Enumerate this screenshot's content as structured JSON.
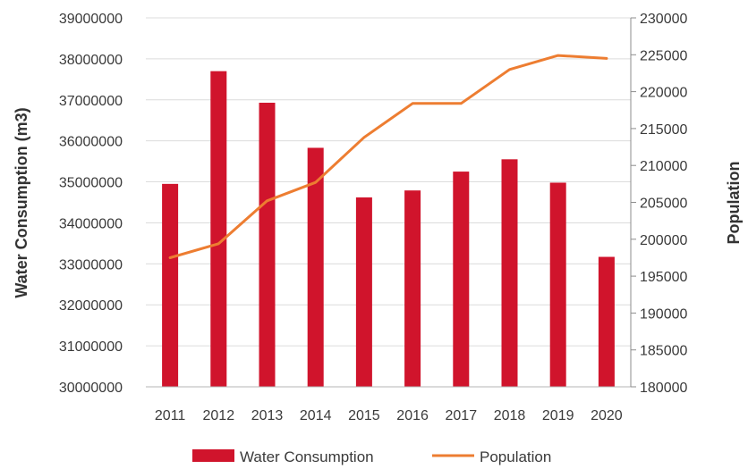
{
  "chart_data": {
    "type": "bar",
    "categories": [
      "2011",
      "2012",
      "2013",
      "2014",
      "2015",
      "2016",
      "2017",
      "2018",
      "2019",
      "2020"
    ],
    "series": [
      {
        "name": "Water Consumption",
        "type": "bar",
        "axis": "left",
        "color": "#d0142c",
        "values": [
          34950000,
          37700000,
          36930000,
          35830000,
          34620000,
          34790000,
          35250000,
          35550000,
          34980000,
          33170000
        ]
      },
      {
        "name": "Population",
        "type": "line",
        "axis": "right",
        "color": "#ed7d31",
        "values": [
          197500,
          199400,
          205200,
          207700,
          213800,
          218400,
          218400,
          223000,
          224900,
          224500
        ]
      }
    ],
    "ylabel_left": "Water Consumption (m3)",
    "ylabel_right": "Population",
    "ylim_left": [
      30000000,
      39000000
    ],
    "ylim_right": [
      180000,
      230000
    ],
    "yticks_left": [
      "30000000",
      "31000000",
      "32000000",
      "33000000",
      "34000000",
      "35000000",
      "36000000",
      "37000000",
      "38000000",
      "39000000"
    ],
    "yticks_right": [
      "180000",
      "185000",
      "190000",
      "195000",
      "200000",
      "205000",
      "210000",
      "215000",
      "220000",
      "225000",
      "230000"
    ],
    "grid": true,
    "legend": {
      "position": "bottom",
      "entries": [
        "Water Consumption",
        "Population"
      ]
    }
  }
}
